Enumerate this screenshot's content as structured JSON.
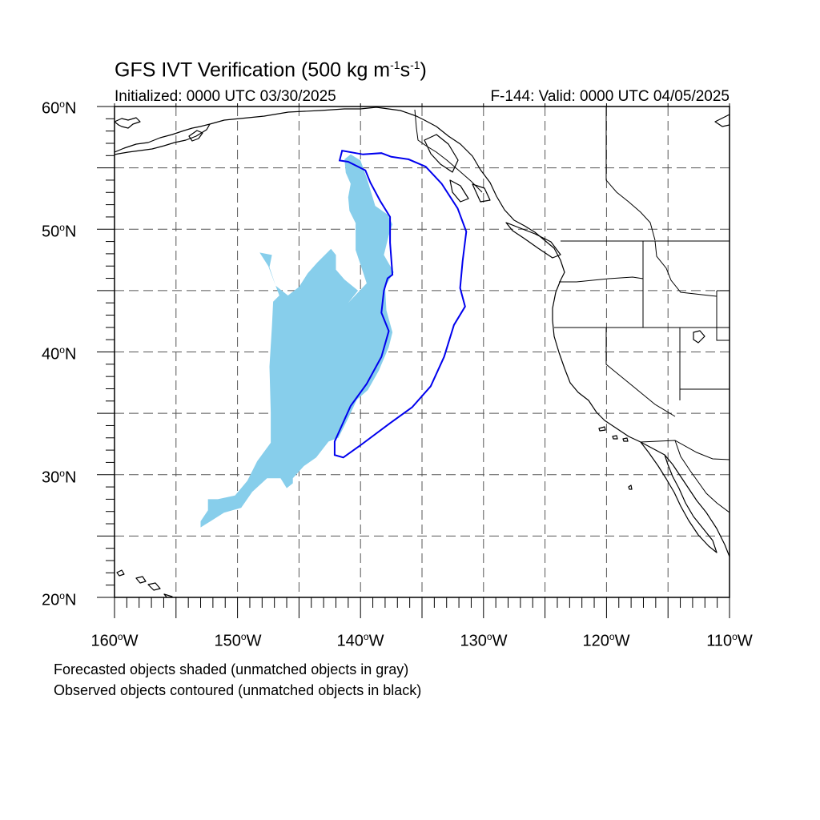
{
  "title": {
    "prefix": "GFS IVT Verification (500 kg m",
    "exp1": "-1",
    "mid": "s",
    "exp2": "-1",
    "suffix": ")"
  },
  "initialized": "Initialized: 0000 UTC 03/30/2025",
  "valid": "F-144: Valid: 0000 UTC 04/05/2025",
  "lat_labels": [
    "60",
    "50",
    "40",
    "30",
    "20"
  ],
  "lat_suffix": "N",
  "lon_labels": [
    "160",
    "150",
    "140",
    "130",
    "120",
    "110"
  ],
  "lon_suffix": "W",
  "notes": {
    "forecast": "Forecasted objects shaded (unmatched objects in gray)",
    "observed": "Observed objects contoured (unmatched objects in black)"
  },
  "colors": {
    "forecast_fill": "#87ceeb",
    "observed_contour": "#0000ee",
    "coastline": "#000000",
    "grid": "#555555"
  },
  "map": {
    "lon_range": [
      -160,
      -110
    ],
    "lat_range": [
      20,
      60
    ],
    "grid_interval_deg": 5,
    "projection": "cylindrical equidistant"
  },
  "objects": {
    "forecast": {
      "status": "matched",
      "outline_lonlat": [
        [
          -141.3,
          55.7
        ],
        [
          -140.8,
          56.1
        ],
        [
          -140.0,
          55.6
        ],
        [
          -139.5,
          54.2
        ],
        [
          -138.8,
          51.9
        ],
        [
          -137.8,
          51.2
        ],
        [
          -137.4,
          50.4
        ],
        [
          -137.7,
          49.5
        ],
        [
          -138.1,
          47.9
        ],
        [
          -137.3,
          46.5
        ],
        [
          -138.0,
          45.3
        ],
        [
          -137.9,
          43.4
        ],
        [
          -137.4,
          41.6
        ],
        [
          -137.7,
          40.4
        ],
        [
          -138.5,
          38.5
        ],
        [
          -139.4,
          36.9
        ],
        [
          -140.3,
          36.1
        ],
        [
          -141.0,
          34.6
        ],
        [
          -141.8,
          33.0
        ],
        [
          -142.6,
          32.7
        ],
        [
          -143.6,
          31.4
        ],
        [
          -144.6,
          30.7
        ],
        [
          -145.5,
          29.7
        ],
        [
          -145.5,
          29.3
        ],
        [
          -146.0,
          28.9
        ],
        [
          -146.5,
          29.7
        ],
        [
          -147.6,
          29.7
        ],
        [
          -148.8,
          28.6
        ],
        [
          -149.7,
          27.3
        ],
        [
          -151.1,
          26.9
        ],
        [
          -152.2,
          26.2
        ],
        [
          -153.0,
          25.7
        ],
        [
          -153.0,
          26.2
        ],
        [
          -152.4,
          27.1
        ],
        [
          -152.4,
          28.0
        ],
        [
          -151.6,
          28.0
        ],
        [
          -150.2,
          28.3
        ],
        [
          -149.2,
          29.5
        ],
        [
          -148.4,
          31.1
        ],
        [
          -147.3,
          32.6
        ],
        [
          -147.3,
          35.1
        ],
        [
          -147.4,
          38.8
        ],
        [
          -147.2,
          42.1
        ],
        [
          -147.1,
          44.1
        ],
        [
          -146.6,
          44.6
        ],
        [
          -147.5,
          47.0
        ],
        [
          -148.2,
          48.1
        ],
        [
          -147.2,
          47.9
        ],
        [
          -147.4,
          46.9
        ],
        [
          -146.9,
          45.4
        ],
        [
          -146.4,
          45.0
        ],
        [
          -145.9,
          44.6
        ],
        [
          -145.0,
          45.3
        ],
        [
          -144.3,
          46.4
        ],
        [
          -143.5,
          47.3
        ],
        [
          -142.4,
          48.4
        ],
        [
          -142.0,
          47.9
        ],
        [
          -142.0,
          46.7
        ],
        [
          -141.3,
          45.9
        ],
        [
          -140.2,
          45.0
        ],
        [
          -141.0,
          44.0
        ],
        [
          -139.5,
          45.6
        ],
        [
          -140.4,
          48.3
        ],
        [
          -140.4,
          50.5
        ],
        [
          -140.9,
          51.5
        ],
        [
          -141.0,
          52.6
        ],
        [
          -140.8,
          53.7
        ],
        [
          -141.2,
          54.6
        ]
      ]
    },
    "observed": {
      "status": "matched",
      "outline_lonlat": [
        [
          -141.5,
          56.4
        ],
        [
          -141.7,
          55.6
        ],
        [
          -141.0,
          55.5
        ],
        [
          -139.6,
          54.8
        ],
        [
          -139.2,
          53.8
        ],
        [
          -138.4,
          52.3
        ],
        [
          -137.6,
          51.0
        ],
        [
          -137.6,
          48.9
        ],
        [
          -137.4,
          46.3
        ],
        [
          -137.8,
          46.0
        ],
        [
          -138.1,
          45.0
        ],
        [
          -138.3,
          43.2
        ],
        [
          -137.7,
          41.7
        ],
        [
          -138.3,
          39.6
        ],
        [
          -139.5,
          37.4
        ],
        [
          -140.8,
          35.6
        ],
        [
          -142.1,
          32.7
        ],
        [
          -142.1,
          31.6
        ],
        [
          -141.4,
          31.4
        ],
        [
          -140.0,
          32.4
        ],
        [
          -137.6,
          34.2
        ],
        [
          -135.8,
          35.5
        ],
        [
          -134.3,
          37.2
        ],
        [
          -133.2,
          39.6
        ],
        [
          -132.4,
          42.2
        ],
        [
          -131.5,
          43.7
        ],
        [
          -131.9,
          45.2
        ],
        [
          -131.7,
          47.4
        ],
        [
          -131.4,
          49.8
        ],
        [
          -132.1,
          51.7
        ],
        [
          -133.4,
          53.7
        ],
        [
          -134.7,
          55.1
        ],
        [
          -136.1,
          55.7
        ],
        [
          -137.5,
          55.9
        ],
        [
          -138.3,
          56.2
        ],
        [
          -139.8,
          56.1
        ]
      ]
    }
  }
}
